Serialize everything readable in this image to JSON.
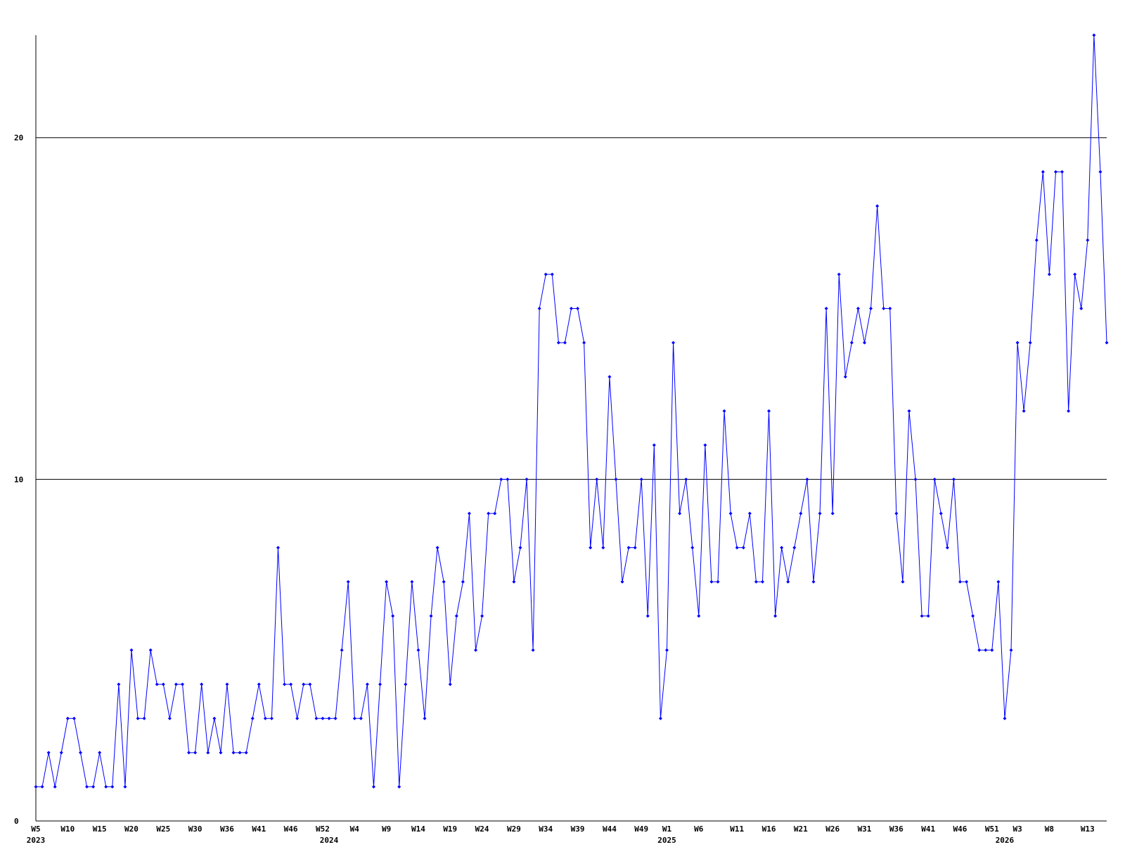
{
  "chart_data": {
    "type": "line",
    "categories": [
      "W5",
      null,
      null,
      null,
      null,
      "W10",
      null,
      null,
      null,
      null,
      "W15",
      null,
      null,
      null,
      null,
      "W20",
      null,
      null,
      null,
      null,
      "W25",
      null,
      null,
      null,
      null,
      "W30",
      null,
      null,
      null,
      null,
      "W36",
      null,
      null,
      null,
      null,
      "W41",
      null,
      null,
      null,
      null,
      "W46",
      null,
      null,
      null,
      null,
      "W52",
      null,
      null,
      null,
      null,
      "W4",
      null,
      null,
      null,
      null,
      "W9",
      null,
      null,
      null,
      null,
      "W14",
      null,
      null,
      null,
      null,
      "W19",
      null,
      null,
      null,
      null,
      "W24",
      null,
      null,
      null,
      null,
      "W29",
      null,
      null,
      null,
      null,
      "W34",
      null,
      null,
      null,
      null,
      "W39",
      null,
      null,
      null,
      null,
      "W44",
      null,
      null,
      null,
      null,
      "W49",
      null,
      null,
      null,
      "W1",
      null,
      null,
      null,
      null,
      "W6",
      null,
      null,
      null,
      null,
      null,
      "W11",
      null,
      null,
      null,
      null,
      "W16",
      null,
      null,
      null,
      null,
      "W21",
      null,
      null,
      null,
      null,
      "W26",
      null,
      null,
      null,
      null,
      "W31",
      null,
      null,
      null,
      null,
      "W36",
      null,
      null,
      null,
      null,
      "W41",
      null,
      null,
      null,
      null,
      "W46",
      null,
      null,
      null,
      null,
      "W51",
      null,
      null,
      null,
      "W3",
      null,
      null,
      null,
      null,
      "W8",
      null,
      null,
      null,
      null,
      null,
      "W13",
      null,
      null,
      null
    ],
    "year_labels": [
      "2023",
      null,
      null,
      null,
      null,
      null,
      null,
      null,
      null,
      null,
      null,
      null,
      null,
      null,
      null,
      null,
      null,
      null,
      null,
      null,
      null,
      null,
      null,
      null,
      null,
      null,
      null,
      null,
      null,
      null,
      null,
      null,
      null,
      null,
      null,
      null,
      null,
      null,
      null,
      null,
      null,
      null,
      null,
      null,
      null,
      null,
      "2024",
      null,
      null,
      null,
      null,
      null,
      null,
      null,
      null,
      null,
      null,
      null,
      null,
      null,
      null,
      null,
      null,
      null,
      null,
      null,
      null,
      null,
      null,
      null,
      null,
      null,
      null,
      null,
      null,
      null,
      null,
      null,
      null,
      null,
      null,
      null,
      null,
      null,
      null,
      null,
      null,
      null,
      null,
      null,
      null,
      null,
      null,
      null,
      null,
      null,
      null,
      null,
      null,
      "2025",
      null,
      null,
      null,
      null,
      null,
      null,
      null,
      null,
      null,
      null,
      null,
      null,
      null,
      null,
      null,
      null,
      null,
      null,
      null,
      null,
      null,
      null,
      null,
      null,
      null,
      null,
      null,
      null,
      null,
      null,
      null,
      null,
      null,
      null,
      null,
      null,
      null,
      null,
      null,
      null,
      null,
      null,
      null,
      null,
      null,
      null,
      null,
      null,
      null,
      null,
      null,
      null,
      "2026",
      null,
      null,
      null,
      null,
      null,
      null,
      null,
      null,
      null,
      null,
      null,
      null,
      null,
      null,
      null,
      null
    ],
    "values": [
      1,
      1,
      2,
      1,
      2,
      3,
      3,
      2,
      1,
      1,
      2,
      1,
      1,
      4,
      1,
      5,
      3,
      3,
      5,
      4,
      4,
      3,
      4,
      4,
      2,
      2,
      4,
      2,
      3,
      2,
      4,
      2,
      2,
      2,
      3,
      4,
      3,
      3,
      8,
      4,
      4,
      3,
      4,
      4,
      3,
      3,
      3,
      3,
      5,
      7,
      3,
      3,
      4,
      1,
      4,
      7,
      6,
      1,
      4,
      7,
      5,
      3,
      6,
      8,
      7,
      4,
      6,
      7,
      9,
      5,
      6,
      9,
      9,
      10,
      10,
      7,
      8,
      10,
      5,
      15,
      16,
      16,
      14,
      14,
      15,
      15,
      14,
      8,
      10,
      8,
      13,
      10,
      7,
      8,
      8,
      10,
      6,
      11,
      3,
      5,
      14,
      9,
      10,
      8,
      6,
      11,
      7,
      7,
      12,
      9,
      8,
      8,
      9,
      7,
      7,
      12,
      6,
      8,
      7,
      8,
      9,
      10,
      7,
      9,
      15,
      9,
      16,
      13,
      14,
      15,
      14,
      15,
      18,
      15,
      15,
      9,
      7,
      12,
      10,
      6,
      6,
      10,
      9,
      8,
      10,
      7,
      7,
      6,
      5,
      5,
      5,
      7,
      3,
      5,
      14,
      12,
      14,
      17,
      19,
      16,
      19,
      19,
      12,
      16,
      15,
      17,
      23,
      19,
      14
    ],
    "color": "#0000ff",
    "ylim": [
      0,
      23
    ],
    "yticks": [
      0,
      10,
      20
    ],
    "grid": true,
    "grid_color": "#000000"
  }
}
